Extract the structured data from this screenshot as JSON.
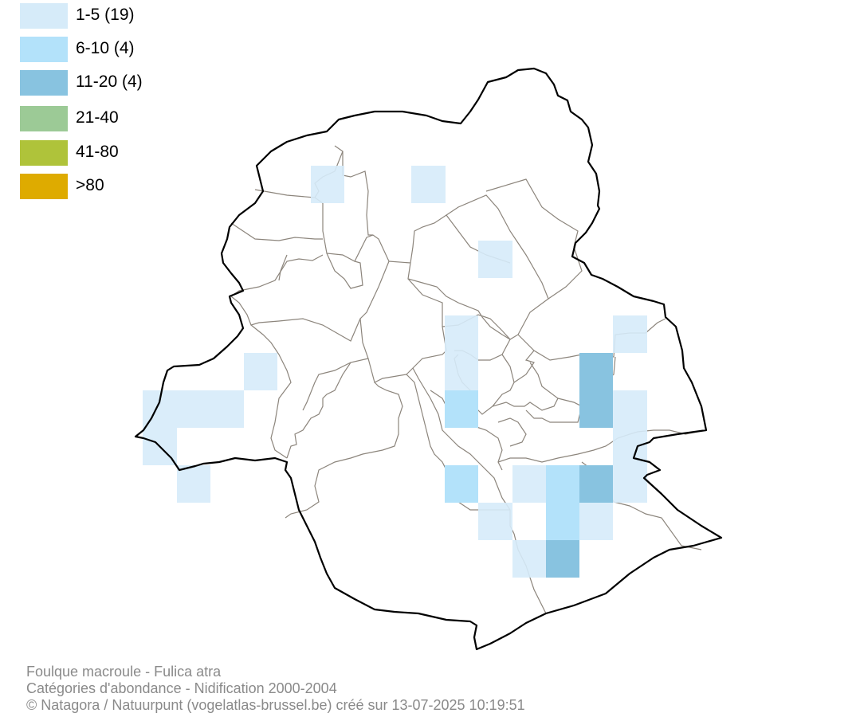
{
  "legend": {
    "items": [
      {
        "label": "1-5 (19)",
        "color": "#d6ebf9"
      },
      {
        "label": "6-10 (4)",
        "color": "#b3e2fa"
      },
      {
        "label": "11-20 (4)",
        "color": "#88c3e0"
      },
      {
        "label": "21-40",
        "color": "#9cca96"
      },
      {
        "label": "41-80",
        "color": "#afc33a"
      },
      {
        "label": ">80",
        "color": "#deab00"
      }
    ]
  },
  "map": {
    "region": "Brussels-Capital Region",
    "grid_cells": [
      {
        "category": "1-5",
        "count": 19
      },
      {
        "category": "6-10",
        "count": 4
      },
      {
        "category": "11-20",
        "count": 4
      }
    ],
    "outline_color": "#000000",
    "commune_border_color": "#8c857c"
  },
  "credits": {
    "line1": "Foulque macroule - Fulica atra",
    "line2": "Catégories d'abondance - Nidification 2000-2004",
    "line3": "© Natagora / Natuurpunt (vogelatlas-brussel.be) créé sur 13-07-2025 10:19:51"
  }
}
